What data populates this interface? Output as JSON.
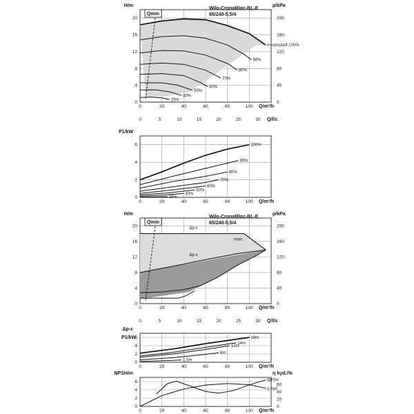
{
  "chart_data": [
    {
      "type": "line",
      "title": "Wilo-CronoBloc-BL-E 65/240-5,5/4",
      "ylabel": "H/m",
      "y2label": "p/kPa",
      "xlabel": "Q/m³/h",
      "x2label": "Q/l/s",
      "qmin_label": "Qmin",
      "xlim": [
        0,
        120
      ],
      "ylim": [
        0,
        22
      ],
      "y2lim": [
        0,
        220
      ],
      "x_ticks": [
        0,
        20,
        40,
        60,
        80,
        100
      ],
      "x2_ticks": [
        0,
        5,
        10,
        15,
        20,
        25,
        30
      ],
      "y_ticks": [
        0,
        4,
        8,
        12,
        16,
        20
      ],
      "y2_ticks": [
        0,
        40,
        80,
        120,
        160,
        200
      ],
      "grid": true,
      "area": {
        "upper": [
          [
            0,
            18.4
          ],
          [
            40,
            19.8
          ],
          [
            60,
            19.6
          ],
          [
            80,
            18.2
          ],
          [
            100,
            16.3
          ],
          [
            110,
            14.4
          ],
          [
            115,
            13.6
          ]
        ],
        "lower": [
          [
            5,
            1.2
          ],
          [
            25,
            1.4
          ],
          [
            45,
            2.4
          ],
          [
            60,
            5.0
          ],
          [
            75,
            7.8
          ],
          [
            90,
            10.6
          ],
          [
            100,
            12.4
          ],
          [
            106,
            13.6
          ]
        ]
      },
      "series": [
        {
          "name": "n=constant 100%",
          "points": [
            [
              0,
              18.4
            ],
            [
              20,
              19.3
            ],
            [
              40,
              19.8
            ],
            [
              60,
              19.6
            ],
            [
              80,
              18.2
            ],
            [
              100,
              16.3
            ],
            [
              115,
              13.6
            ]
          ],
          "bold": true
        },
        {
          "name": "90%",
          "points": [
            [
              0,
              14.8
            ],
            [
              20,
              15.6
            ],
            [
              40,
              15.8
            ],
            [
              60,
              15.2
            ],
            [
              80,
              13.6
            ],
            [
              95,
              11.4
            ],
            [
              102,
              10.1
            ]
          ]
        },
        {
          "name": "80%",
          "points": [
            [
              0,
              11.7
            ],
            [
              20,
              12.3
            ],
            [
              40,
              12.2
            ],
            [
              60,
              11.2
            ],
            [
              80,
              9.2
            ],
            [
              89,
              7.6
            ]
          ]
        },
        {
          "name": "70%",
          "points": [
            [
              0,
              9.0
            ],
            [
              20,
              9.3
            ],
            [
              40,
              9.0
            ],
            [
              60,
              7.6
            ],
            [
              74,
              5.7
            ]
          ]
        },
        {
          "name": "60%",
          "points": [
            [
              0,
              6.6
            ],
            [
              20,
              6.8
            ],
            [
              40,
              6.3
            ],
            [
              55,
              4.7
            ],
            [
              62,
              3.7
            ]
          ]
        },
        {
          "name": "50%",
          "points": [
            [
              0,
              4.6
            ],
            [
              20,
              4.6
            ],
            [
              35,
              4.0
            ],
            [
              48,
              2.8
            ]
          ]
        },
        {
          "name": "40%",
          "points": [
            [
              0,
              2.9
            ],
            [
              15,
              2.9
            ],
            [
              28,
              2.4
            ],
            [
              38,
              1.6
            ]
          ]
        },
        {
          "name": "25%",
          "points": [
            [
              0,
              1.1
            ],
            [
              10,
              1.2
            ],
            [
              20,
              1.0
            ],
            [
              27,
              0.6
            ]
          ]
        }
      ]
    },
    {
      "type": "line",
      "ylabel": "P1/kW",
      "xlabel": "Q/m³/h",
      "xlim": [
        0,
        120
      ],
      "ylim": [
        0,
        7
      ],
      "x_ticks": [
        0,
        20,
        40,
        60,
        80,
        100
      ],
      "y_ticks": [
        0,
        2,
        4,
        6
      ],
      "grid": true,
      "series": [
        {
          "name": "100%",
          "points": [
            [
              0,
              2.0
            ],
            [
              20,
              2.9
            ],
            [
              40,
              3.9
            ],
            [
              60,
              4.8
            ],
            [
              80,
              5.5
            ],
            [
              100,
              6.0
            ]
          ],
          "bold": true
        },
        {
          "name": "90%",
          "points": [
            [
              0,
              1.45
            ],
            [
              30,
              2.4
            ],
            [
              60,
              3.3
            ],
            [
              90,
              4.2
            ]
          ]
        },
        {
          "name": "80%",
          "points": [
            [
              0,
              1.05
            ],
            [
              30,
              1.8
            ],
            [
              60,
              2.4
            ],
            [
              80,
              2.9
            ]
          ]
        },
        {
          "name": "70%",
          "points": [
            [
              0,
              0.7
            ],
            [
              30,
              1.2
            ],
            [
              60,
              1.7
            ],
            [
              72,
              2.0
            ]
          ]
        },
        {
          "name": "60%",
          "points": [
            [
              0,
              0.45
            ],
            [
              30,
              0.85
            ],
            [
              60,
              1.3
            ]
          ]
        },
        {
          "name": "50%",
          "points": [
            [
              0,
              0.28
            ],
            [
              25,
              0.5
            ],
            [
              50,
              0.85
            ]
          ]
        },
        {
          "name": "40%",
          "points": [
            [
              0,
              0.15
            ],
            [
              20,
              0.25
            ],
            [
              40,
              0.45
            ]
          ]
        },
        {
          "name": "25%",
          "points": [
            [
              0,
              0.04
            ],
            [
              15,
              0.06
            ],
            [
              25,
              0.08
            ]
          ]
        }
      ]
    },
    {
      "type": "area",
      "title": "Wilo-CronoBloc-BL-E 65/240-5,5/4",
      "ylabel": "H/m",
      "y2label": "p/kPa",
      "xlabel": "Q/m³/h",
      "x2label": "Q/l/s",
      "qmin_label": "Qmin",
      "xlim": [
        0,
        120
      ],
      "ylim": [
        0,
        22
      ],
      "y2lim": [
        0,
        220
      ],
      "x_ticks": [
        0,
        20,
        40,
        60,
        80,
        100
      ],
      "x2_ticks": [
        0,
        5,
        10,
        15,
        20,
        25,
        30
      ],
      "y_ticks": [
        0,
        4,
        8,
        12,
        16,
        20
      ],
      "y2_ticks": [
        0,
        40,
        80,
        120,
        160,
        200
      ],
      "grid": true,
      "light_region": [
        [
          0,
          18
        ],
        [
          95,
          18
        ],
        [
          115,
          13.8
        ],
        [
          0,
          8
        ]
      ],
      "dark_region": [
        [
          0,
          8
        ],
        [
          115,
          13.8
        ],
        [
          107,
          12.4
        ],
        [
          90,
          10
        ],
        [
          70,
          6.6
        ],
        [
          55,
          4.5
        ],
        [
          45,
          3.0
        ],
        [
          5,
          1.4
        ],
        [
          0,
          1.4
        ]
      ],
      "series": [
        {
          "name": "Δp-c",
          "points": [
            [
              0,
              18
            ],
            [
              95,
              18
            ],
            [
              115,
              13.8
            ]
          ]
        },
        {
          "name": "Δp-v",
          "points": [
            [
              0,
              8
            ],
            [
              30,
              9.6
            ],
            [
              60,
              11.3
            ],
            [
              90,
              12.9
            ],
            [
              115,
              13.8
            ]
          ]
        },
        {
          "name": "max.",
          "points": [
            [
              95,
              18
            ],
            [
              115,
              13.8
            ]
          ]
        },
        {
          "name": "",
          "points": [
            [
              0,
              2.8
            ],
            [
              20,
              3.0
            ],
            [
              40,
              3.6
            ],
            [
              55,
              4.6
            ],
            [
              70,
              6.6
            ],
            [
              90,
              10
            ],
            [
              107,
              12.4
            ],
            [
              115,
              13.8
            ]
          ]
        },
        {
          "name": "",
          "points": [
            [
              0,
              1.4
            ],
            [
              35,
              1.4
            ],
            [
              42,
              2.0
            ],
            [
              50,
              3.3
            ]
          ]
        }
      ],
      "labels": {
        "dpc": "Δp-c",
        "dpv": "Δp-v",
        "max": "max."
      }
    },
    {
      "type": "line",
      "ylabel": "Δp-c",
      "ylabel2": "P1/kW",
      "xlabel": "Q/m³/h",
      "xlim": [
        0,
        120
      ],
      "ylim": [
        0,
        7
      ],
      "x_ticks": [
        0,
        20,
        40,
        60,
        80,
        100
      ],
      "y_ticks": [
        0,
        2,
        4,
        6
      ],
      "grid": true,
      "series": [
        {
          "name": "18m",
          "points": [
            [
              0,
              2.2
            ],
            [
              30,
              3.2
            ],
            [
              60,
              4.5
            ],
            [
              100,
              6.0
            ]
          ],
          "bold": true
        },
        {
          "name": "14m",
          "points": [
            [
              0,
              1.5
            ],
            [
              30,
              2.4
            ],
            [
              60,
              3.6
            ],
            [
              88,
              4.7
            ]
          ]
        },
        {
          "name": "12m",
          "points": [
            [
              0,
              1.2
            ],
            [
              30,
              2.0
            ],
            [
              60,
              3.1
            ],
            [
              82,
              4.0
            ]
          ]
        },
        {
          "name": "6m",
          "points": [
            [
              0,
              0.6
            ],
            [
              30,
              1.1
            ],
            [
              60,
              1.9
            ],
            [
              72,
              2.3
            ]
          ]
        },
        {
          "name": "1,5m",
          "points": [
            [
              0,
              0.2
            ],
            [
              20,
              0.35
            ],
            [
              38,
              0.55
            ]
          ]
        }
      ]
    },
    {
      "type": "line",
      "ylabel": "NPSH/m",
      "y2label": "η hyd./%",
      "xlabel": "Q/m³/h",
      "xlim": [
        0,
        120
      ],
      "ylim": [
        0,
        7
      ],
      "y2lim": [
        0,
        80
      ],
      "x_ticks": [
        0,
        20,
        40,
        60,
        80,
        100
      ],
      "y_ticks": [
        0,
        2,
        4,
        6
      ],
      "y2_ticks": [
        0,
        20,
        40,
        60
      ],
      "grid": true,
      "series": [
        {
          "name": "η hyd.",
          "axis": "y2",
          "points": [
            [
              0,
              0
            ],
            [
              20,
              30
            ],
            [
              40,
              48
            ],
            [
              60,
              59
            ],
            [
              80,
              63
            ],
            [
              100,
              60
            ],
            [
              115,
              50
            ]
          ]
        },
        {
          "name": "NPSH",
          "axis": "y",
          "points": [
            [
              15,
              3
            ],
            [
              25,
              5.5
            ],
            [
              33,
              6.1
            ],
            [
              45,
              5.0
            ],
            [
              60,
              3.6
            ],
            [
              72,
              3.2
            ],
            [
              85,
              3.8
            ],
            [
              100,
              5.2
            ],
            [
              115,
              6.4
            ]
          ]
        }
      ]
    }
  ]
}
